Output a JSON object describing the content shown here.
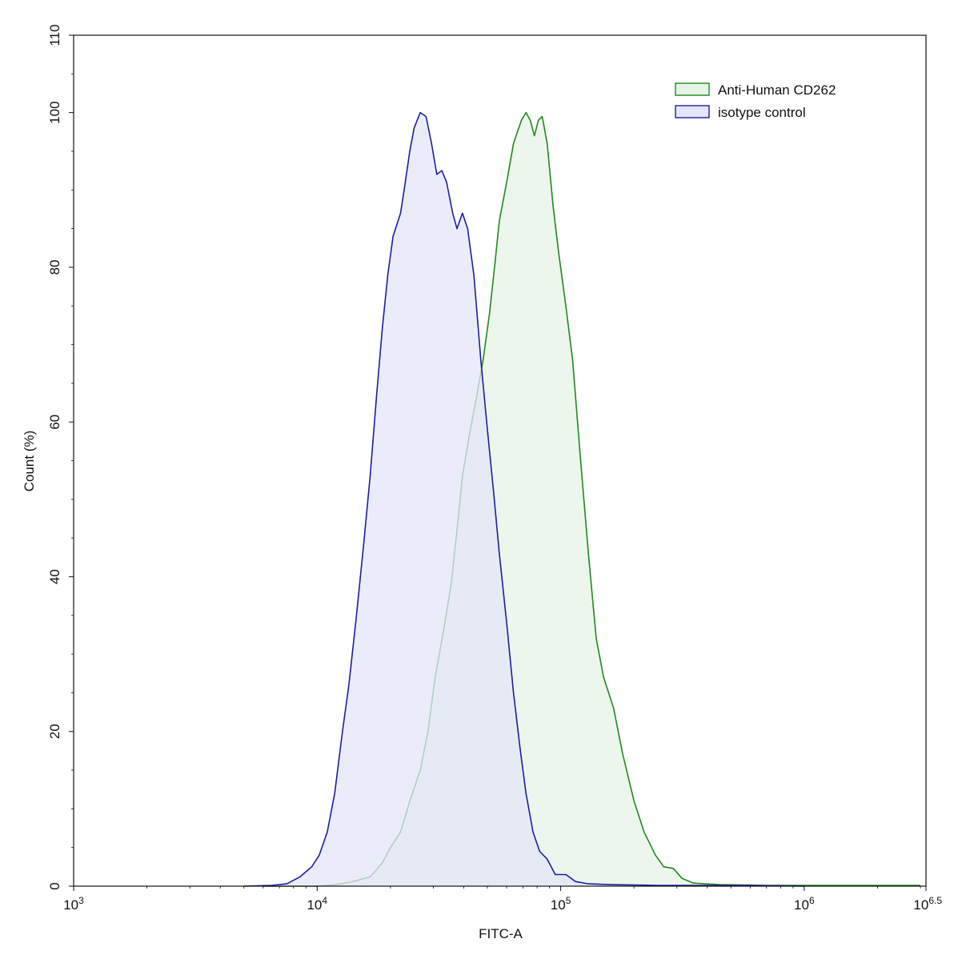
{
  "chart_data": {
    "type": "area",
    "title": "",
    "xlabel": "FITC-A",
    "ylabel": "Count  (%)",
    "x_scale": "log10",
    "xlim": [
      1000,
      3162278
    ],
    "ylim": [
      0,
      110
    ],
    "x_ticks": [
      {
        "value": 1000,
        "base": "10",
        "exp": "3"
      },
      {
        "value": 10000,
        "base": "10",
        "exp": "4"
      },
      {
        "value": 100000,
        "base": "10",
        "exp": "5"
      },
      {
        "value": 1000000,
        "base": "10",
        "exp": "6"
      },
      {
        "value": 3162278,
        "base": "10",
        "exp": "6.5"
      }
    ],
    "y_ticks": [
      {
        "value": 0,
        "label": "0"
      },
      {
        "value": 20,
        "label": "20"
      },
      {
        "value": 40,
        "label": "40"
      },
      {
        "value": 60,
        "label": "60"
      },
      {
        "value": 80,
        "label": "80"
      },
      {
        "value": 100,
        "label": "100"
      },
      {
        "value": 110,
        "label": "110"
      }
    ],
    "grid": false,
    "legend_position": "top-right",
    "series": [
      {
        "name": "Anti-Human CD262",
        "stroke": "#1e8a1e",
        "fill": "#e6f3e6",
        "points": [
          [
            6000,
            0
          ],
          [
            10000,
            0
          ],
          [
            12000,
            0.2
          ],
          [
            14000,
            0.6
          ],
          [
            16500,
            1.2
          ],
          [
            18500,
            3
          ],
          [
            20000,
            5
          ],
          [
            22000,
            7
          ],
          [
            24000,
            11
          ],
          [
            26500,
            15
          ],
          [
            28500,
            20
          ],
          [
            30500,
            27
          ],
          [
            33000,
            33
          ],
          [
            35500,
            39
          ],
          [
            37500,
            46
          ],
          [
            39500,
            53
          ],
          [
            42000,
            58
          ],
          [
            45000,
            63
          ],
          [
            48000,
            68
          ],
          [
            51000,
            74
          ],
          [
            53500,
            80
          ],
          [
            56000,
            86
          ],
          [
            60000,
            91
          ],
          [
            64000,
            96
          ],
          [
            69000,
            99
          ],
          [
            72000,
            100
          ],
          [
            75000,
            99
          ],
          [
            78000,
            97
          ],
          [
            81000,
            99
          ],
          [
            84000,
            99.5
          ],
          [
            88000,
            96
          ],
          [
            93000,
            88
          ],
          [
            98000,
            82
          ],
          [
            105000,
            75
          ],
          [
            112000,
            68
          ],
          [
            120000,
            56
          ],
          [
            130000,
            43
          ],
          [
            140000,
            32
          ],
          [
            150000,
            27
          ],
          [
            165000,
            23
          ],
          [
            180000,
            17
          ],
          [
            200000,
            11
          ],
          [
            220000,
            7
          ],
          [
            245000,
            4
          ],
          [
            265000,
            2.5
          ],
          [
            290000,
            2.3
          ],
          [
            315000,
            1
          ],
          [
            350000,
            0.4
          ],
          [
            450000,
            0.2
          ],
          [
            700000,
            0.1
          ],
          [
            1000000,
            0.1
          ],
          [
            3000000,
            0.1
          ]
        ]
      },
      {
        "name": "isotype control",
        "stroke": "#1c1fa0",
        "fill": "#e4e6f8",
        "points": [
          [
            5000,
            0
          ],
          [
            6500,
            0.1
          ],
          [
            7500,
            0.3
          ],
          [
            8500,
            1.2
          ],
          [
            9500,
            2.5
          ],
          [
            10200,
            4
          ],
          [
            11000,
            7
          ],
          [
            11800,
            12
          ],
          [
            12700,
            20
          ],
          [
            13500,
            26
          ],
          [
            14500,
            35
          ],
          [
            15500,
            44
          ],
          [
            16500,
            53
          ],
          [
            17500,
            63
          ],
          [
            18500,
            72
          ],
          [
            19500,
            79
          ],
          [
            20500,
            84
          ],
          [
            22000,
            87
          ],
          [
            23000,
            91
          ],
          [
            24000,
            95
          ],
          [
            25000,
            98
          ],
          [
            26500,
            100
          ],
          [
            28000,
            99.5
          ],
          [
            29500,
            96
          ],
          [
            31000,
            92
          ],
          [
            32500,
            92.5
          ],
          [
            34000,
            91
          ],
          [
            36000,
            87
          ],
          [
            37500,
            85
          ],
          [
            39500,
            87
          ],
          [
            41500,
            85
          ],
          [
            44000,
            79
          ],
          [
            47000,
            68
          ],
          [
            50000,
            59
          ],
          [
            53000,
            51
          ],
          [
            56000,
            43
          ],
          [
            60000,
            34
          ],
          [
            64000,
            25
          ],
          [
            68000,
            18
          ],
          [
            72000,
            12
          ],
          [
            77000,
            7
          ],
          [
            82000,
            4.5
          ],
          [
            88000,
            3.5
          ],
          [
            95000,
            1.5
          ],
          [
            105000,
            1.5
          ],
          [
            115000,
            0.6
          ],
          [
            130000,
            0.3
          ],
          [
            160000,
            0.2
          ],
          [
            250000,
            0.1
          ],
          [
            600000,
            0.1
          ],
          [
            1000000,
            0
          ]
        ]
      }
    ]
  }
}
